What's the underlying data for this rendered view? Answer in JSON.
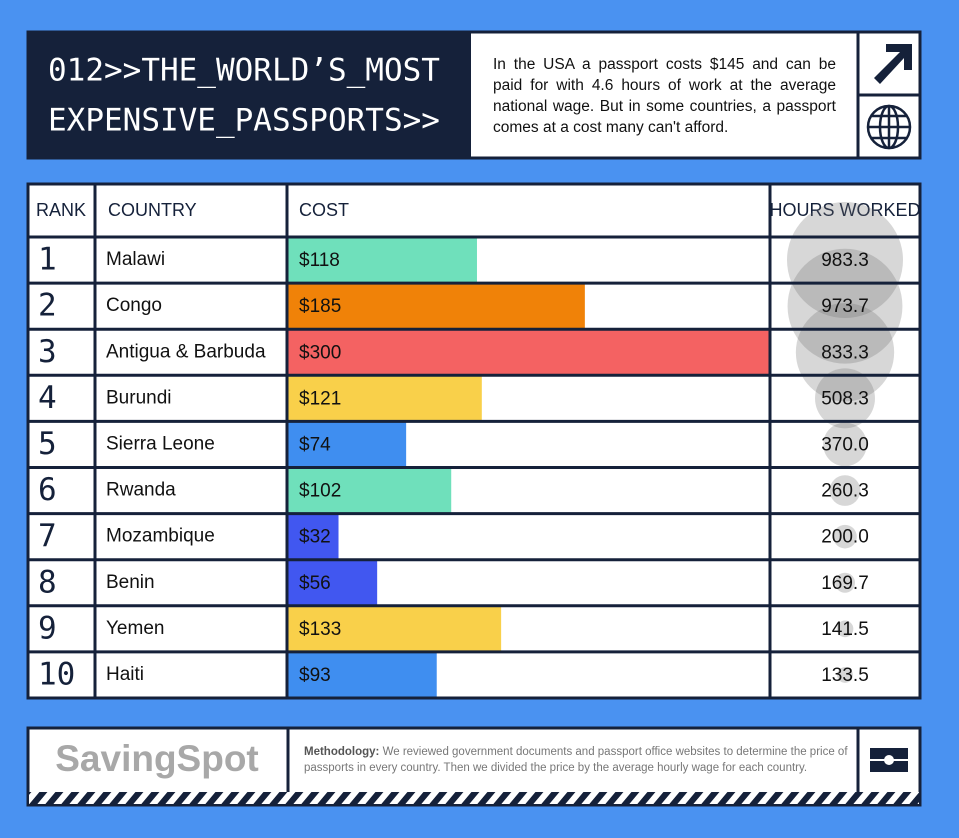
{
  "header": {
    "title_lines": [
      "012>>THE_WORLD’S_MOST",
      "EXPENSIVE_PASSPORTS>>"
    ],
    "description": "In the USA a passport costs $145 and can be paid for with 4.6 hours of work at the average national wage. But in some countries, a passport comes at a cost many can't afford."
  },
  "table": {
    "columns": [
      "RANK",
      "COUNTRY",
      "COST",
      "HOURS WORKED"
    ],
    "rows": [
      {
        "rank": 1,
        "country": "Malawi",
        "cost": {
          "value": 118,
          "label": "$118"
        },
        "hours": {
          "value": 983.3,
          "label": "983.3"
        },
        "color": "#6fe0bb"
      },
      {
        "rank": 2,
        "country": "Congo",
        "cost": {
          "value": 185,
          "label": "$185"
        },
        "hours": {
          "value": 973.7,
          "label": "973.7"
        },
        "color": "#f08208"
      },
      {
        "rank": 3,
        "country": "Antigua & Barbuda",
        "cost": {
          "value": 300,
          "label": "$300"
        },
        "hours": {
          "value": 833.3,
          "label": "833.3"
        },
        "color": "#f46262"
      },
      {
        "rank": 4,
        "country": "Burundi",
        "cost": {
          "value": 121,
          "label": "$121"
        },
        "hours": {
          "value": 508.3,
          "label": "508.3"
        },
        "color": "#f9d04a"
      },
      {
        "rank": 5,
        "country": "Sierra Leone",
        "cost": {
          "value": 74,
          "label": "$74"
        },
        "hours": {
          "value": 370,
          "label": "370.0"
        },
        "color": "#3f8ef0"
      },
      {
        "rank": 6,
        "country": "Rwanda",
        "cost": {
          "value": 102,
          "label": "$102"
        },
        "hours": {
          "value": 260.3,
          "label": "260.3"
        },
        "color": "#6fe0bb"
      },
      {
        "rank": 7,
        "country": "Mozambique",
        "cost": {
          "value": 32,
          "label": "$32"
        },
        "hours": {
          "value": 200,
          "label": "200.0"
        },
        "color": "#4157f0"
      },
      {
        "rank": 8,
        "country": "Benin",
        "cost": {
          "value": 56,
          "label": "$56"
        },
        "hours": {
          "value": 169.7,
          "label": "169.7"
        },
        "color": "#4157f0"
      },
      {
        "rank": 9,
        "country": "Yemen",
        "cost": {
          "value": 133,
          "label": "$133"
        },
        "hours": {
          "value": 141.5,
          "label": "141.5"
        },
        "color": "#f9d04a"
      },
      {
        "rank": 10,
        "country": "Haiti",
        "cost": {
          "value": 93,
          "label": "$93"
        },
        "hours": {
          "value": 133.5,
          "label": "133.5"
        },
        "color": "#3f8ef0"
      }
    ]
  },
  "footer": {
    "brand": "SavingSpot",
    "methodology_label": "Methodology:",
    "methodology_text": "We reviewed government documents and passport office websites to determine the price of passports in every country. Then we divided the price by the average hourly wage for each country."
  }
}
